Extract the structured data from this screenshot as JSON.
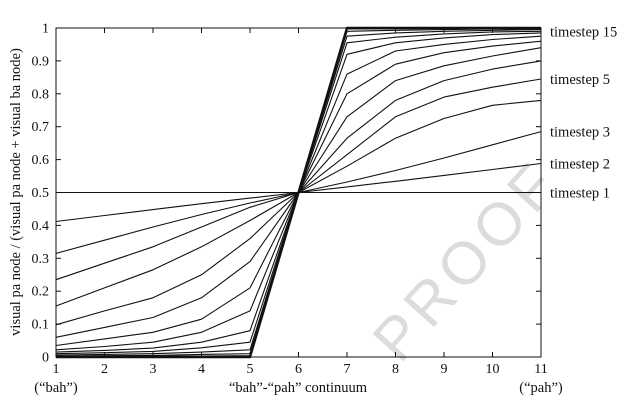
{
  "chart_data": {
    "type": "line",
    "ylabel": "visual pa node / (visual pa node + visual ba node)",
    "xlabel": "“bah”-“pah” continuum",
    "x_end_labels": {
      "left": "(“bah”)",
      "right": "(“pah”)"
    },
    "x": [
      1,
      2,
      3,
      4,
      5,
      6,
      7,
      8,
      9,
      10,
      11
    ],
    "xlim": [
      1,
      11
    ],
    "ylim": [
      0,
      1
    ],
    "xticks": [
      1,
      2,
      3,
      4,
      5,
      6,
      7,
      8,
      9,
      10,
      11
    ],
    "yticks": [
      0,
      0.1,
      0.2,
      0.3,
      0.4,
      0.5,
      0.6,
      0.7,
      0.8,
      0.9,
      1
    ],
    "grid": false,
    "series": [
      {
        "values": [
          0.5,
          0.5,
          0.5,
          0.5,
          0.5,
          0.5,
          0.5,
          0.5,
          0.5,
          0.5,
          0.5
        ]
      },
      {
        "values": [
          0.412,
          0.43,
          0.448,
          0.466,
          0.483,
          0.5,
          0.517,
          0.534,
          0.552,
          0.57,
          0.588
        ]
      },
      {
        "values": [
          0.315,
          0.355,
          0.395,
          0.433,
          0.468,
          0.5,
          0.532,
          0.567,
          0.605,
          0.645,
          0.685
        ]
      },
      {
        "values": [
          0.235,
          0.285,
          0.335,
          0.395,
          0.455,
          0.5,
          0.58,
          0.665,
          0.725,
          0.765,
          0.78
        ]
      },
      {
        "values": [
          0.155,
          0.21,
          0.265,
          0.335,
          0.415,
          0.5,
          0.615,
          0.73,
          0.79,
          0.82,
          0.845
        ]
      },
      {
        "values": [
          0.098,
          0.14,
          0.18,
          0.25,
          0.36,
          0.5,
          0.665,
          0.78,
          0.84,
          0.875,
          0.9
        ]
      },
      {
        "values": [
          0.06,
          0.09,
          0.12,
          0.18,
          0.29,
          0.5,
          0.73,
          0.84,
          0.885,
          0.915,
          0.94
        ]
      },
      {
        "values": [
          0.035,
          0.055,
          0.075,
          0.115,
          0.21,
          0.5,
          0.8,
          0.89,
          0.925,
          0.945,
          0.96
        ]
      },
      {
        "values": [
          0.022,
          0.032,
          0.045,
          0.075,
          0.14,
          0.5,
          0.86,
          0.93,
          0.95,
          0.965,
          0.975
        ]
      },
      {
        "values": [
          0.015,
          0.02,
          0.027,
          0.045,
          0.08,
          0.5,
          0.92,
          0.955,
          0.97,
          0.98,
          0.985
        ]
      },
      {
        "values": [
          0.01,
          0.013,
          0.017,
          0.028,
          0.045,
          0.5,
          0.955,
          0.972,
          0.982,
          0.988,
          0.99
        ]
      },
      {
        "values": [
          0.006,
          0.008,
          0.01,
          0.015,
          0.022,
          0.5,
          0.975,
          0.985,
          0.99,
          0.993,
          0.995
        ]
      },
      {
        "values": [
          0.003,
          0.004,
          0.005,
          0.008,
          0.01,
          0.5,
          0.99,
          0.993,
          0.995,
          0.997,
          0.998
        ]
      },
      {
        "values": [
          0.001,
          0.002,
          0.002,
          0.003,
          0.004,
          0.5,
          0.997,
          0.998,
          0.999,
          0.999,
          0.999
        ]
      },
      {
        "values": [
          0.0,
          0.0,
          0.0,
          0.0,
          0.0,
          0.5,
          1.0,
          1.0,
          1.0,
          1.0,
          1.0
        ]
      }
    ],
    "series_labels": [
      {
        "text": "timestep 15",
        "y": 0.99
      },
      {
        "text": "timestep 5",
        "y": 0.845
      },
      {
        "text": "timestep 3",
        "y": 0.685
      },
      {
        "text": "timestep 2",
        "y": 0.588
      },
      {
        "text": "timestep 1",
        "y": 0.5
      }
    ],
    "line_color": "#111111"
  },
  "watermark": "PROOF"
}
